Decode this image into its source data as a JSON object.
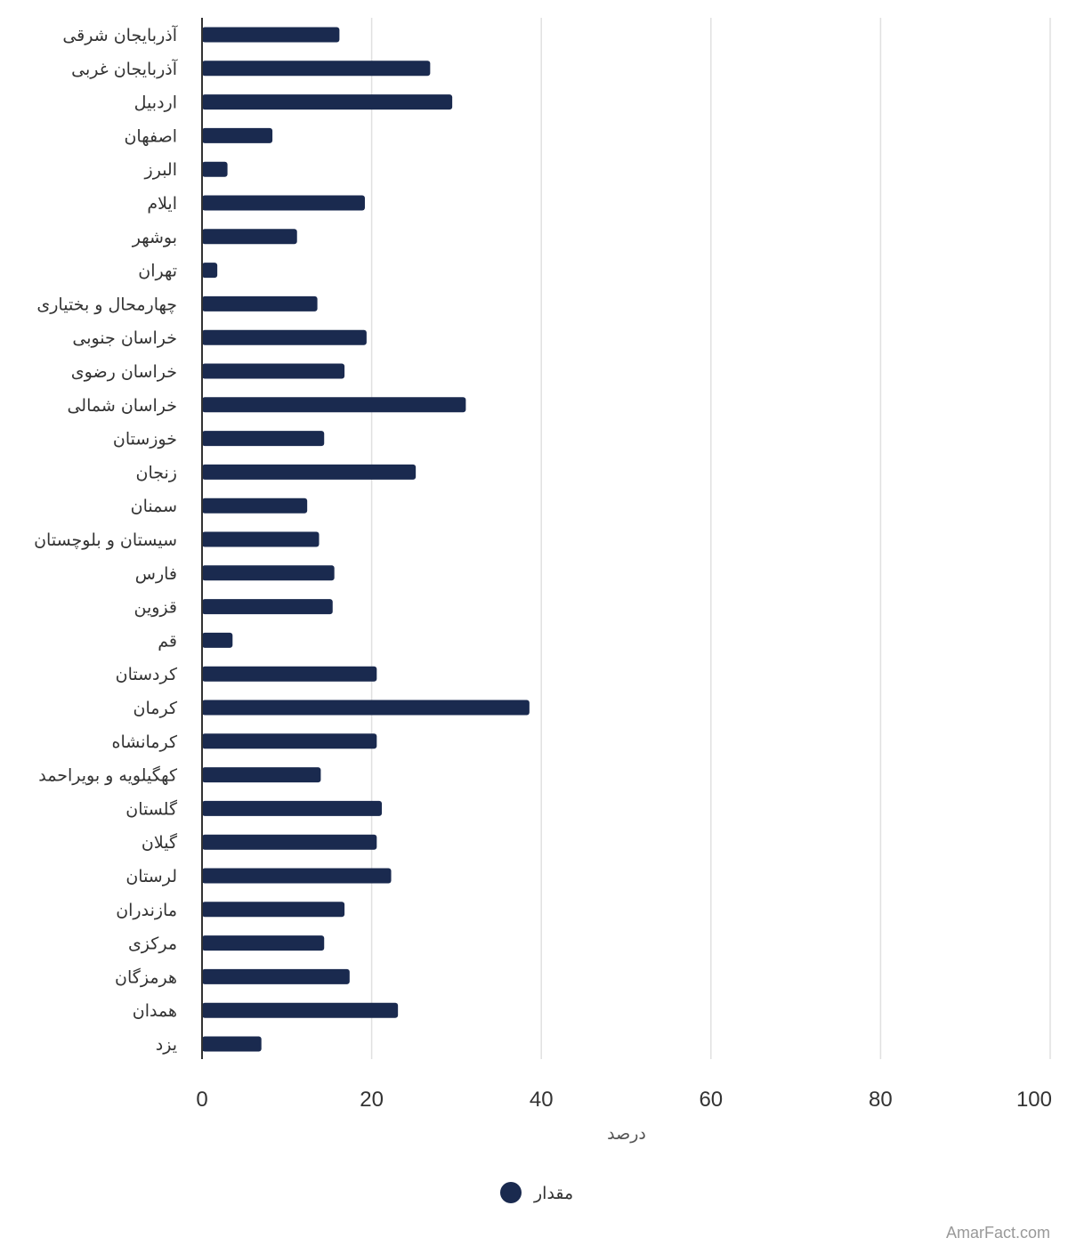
{
  "chart_data": {
    "type": "bar",
    "orientation": "horizontal",
    "categories": [
      "آذربایجان شرقی",
      "آذربایجان غربی",
      "اردبیل",
      "اصفهان",
      "البرز",
      "ایلام",
      "بوشهر",
      "تهران",
      "چهارمحال و بختیاری",
      "خراسان جنوبی",
      "خراسان رضوی",
      "خراسان شمالی",
      "خوزستان",
      "زنجان",
      "سمنان",
      "سیستان و بلوچستان",
      "فارس",
      "قزوین",
      "قم",
      "کردستان",
      "کرمان",
      "کرمانشاه",
      "کهگیلویه و بویراحمد",
      "گلستان",
      "گیلان",
      "لرستان",
      "مازندران",
      "مرکزی",
      "هرمزگان",
      "همدان",
      "یزد"
    ],
    "series": [
      {
        "name": "مقدار",
        "color": "#1a2a4f",
        "values": [
          16.2,
          26.9,
          29.5,
          8.3,
          3.0,
          19.2,
          11.2,
          1.8,
          13.6,
          19.4,
          16.8,
          31.1,
          14.4,
          25.2,
          12.4,
          13.8,
          15.6,
          15.4,
          3.6,
          20.6,
          38.6,
          20.6,
          14.0,
          21.2,
          20.6,
          22.3,
          16.8,
          14.4,
          17.4,
          23.1,
          7.0
        ]
      }
    ],
    "xlabel": "درصد",
    "xlim": [
      0,
      100
    ],
    "x_ticks": [
      0,
      20,
      40,
      60,
      80,
      100
    ],
    "grid": true,
    "legend_position": "bottom-center"
  },
  "credit": "AmarFact.com",
  "colors": {
    "bar": "#1a2a4f",
    "grid": "#e0e0e0",
    "axis": "#333333"
  }
}
